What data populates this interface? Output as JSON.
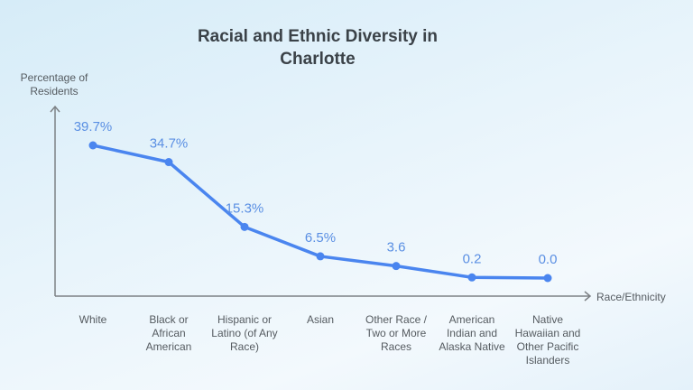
{
  "chart_data": {
    "type": "line",
    "title": "Racial and Ethnic Diversity in Charlotte",
    "title_lines": [
      "Racial and Ethnic Diversity in",
      "Charlotte"
    ],
    "xlabel": "Race/Ethnicity",
    "ylabel": "Percentage of Residents",
    "ylabel_lines": [
      "Percentage of",
      "Residents"
    ],
    "categories": [
      [
        "White"
      ],
      [
        "Black or",
        "African",
        "American"
      ],
      [
        "Hispanic or",
        "Latino (of Any",
        "Race)"
      ],
      [
        "Asian"
      ],
      [
        "Other Race /",
        "Two or More",
        "Races"
      ],
      [
        "American",
        "Indian and",
        "Alaska Native"
      ],
      [
        "Native",
        "Hawaiian and",
        "Other Pacific",
        "Islanders"
      ]
    ],
    "values": [
      39.7,
      34.7,
      15.3,
      6.5,
      3.6,
      0.2,
      0.0
    ],
    "data_labels": [
      "39.7%",
      "34.7%",
      "15.3%",
      "6.5%",
      "3.6",
      "0.2",
      "0.0"
    ],
    "ylim": [
      0,
      39.7
    ],
    "grid": false,
    "legend": "none",
    "colors": {
      "line": "#4a85ef",
      "data_label": "#5a8fe3",
      "axis": "#7d8185",
      "title": "#3b4248"
    }
  }
}
